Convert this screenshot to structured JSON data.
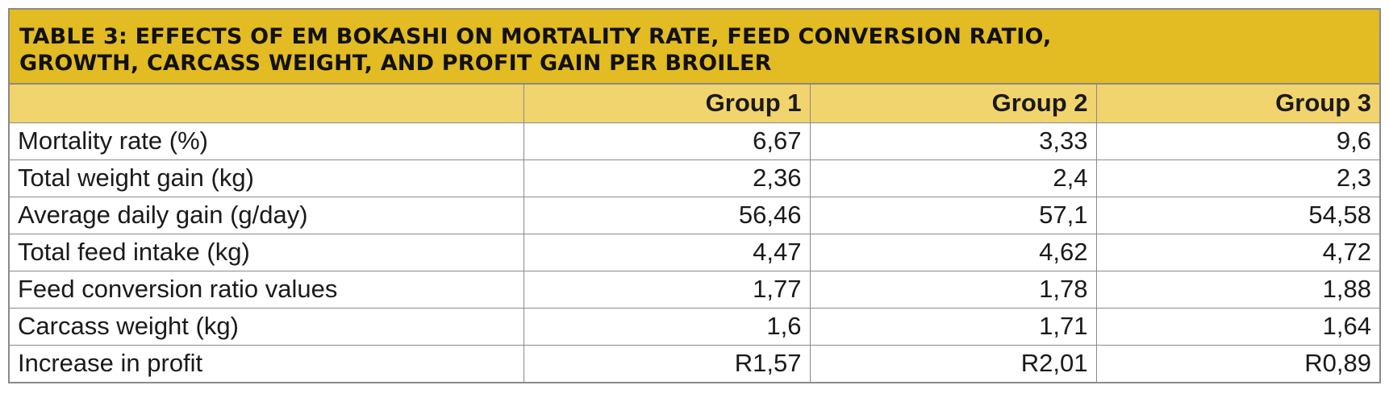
{
  "title": {
    "line1": "TABLE 3: EFFECTS OF EM BOKASHI ON MORTALITY RATE, FEED CONVERSION RATIO,",
    "line2": "GROWTH, CARCASS WEIGHT, AND PROFIT GAIN PER BROILER"
  },
  "colors": {
    "title_background": "#e3bb22",
    "header_background": "#f1d46e",
    "border": "#8a8a8a"
  },
  "table": {
    "headers": [
      "",
      "Group 1",
      "Group 2",
      "Group 3"
    ],
    "rows": [
      {
        "label": "Mortality rate (%)",
        "values": [
          "6,67",
          "3,33",
          "9,6"
        ]
      },
      {
        "label": "Total weight gain (kg)",
        "values": [
          "2,36",
          "2,4",
          "2,3"
        ]
      },
      {
        "label": "Average daily gain (g/day)",
        "values": [
          "56,46",
          "57,1",
          "54,58"
        ]
      },
      {
        "label": "Total feed intake (kg)",
        "values": [
          "4,47",
          "4,62",
          "4,72"
        ]
      },
      {
        "label": "Feed conversion ratio values",
        "values": [
          "1,77",
          "1,78",
          "1,88"
        ]
      },
      {
        "label": "Carcass weight (kg)",
        "values": [
          "1,6",
          "1,71",
          "1,64"
        ]
      },
      {
        "label": "Increase in profit",
        "values": [
          "R1,57",
          "R2,01",
          "R0,89"
        ]
      }
    ]
  }
}
